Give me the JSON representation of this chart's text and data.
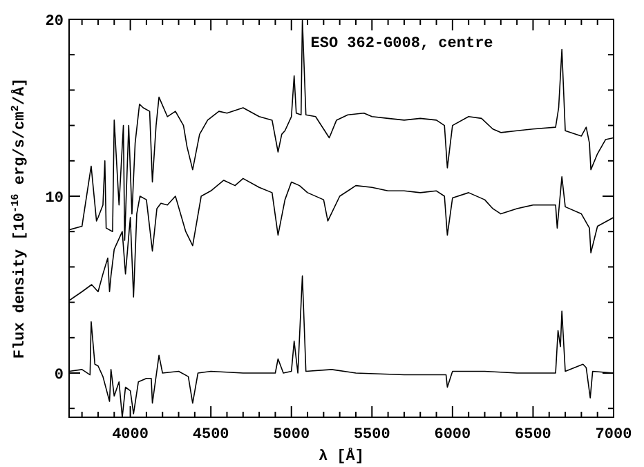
{
  "chart_data": {
    "type": "line",
    "title": "ESO 362-G008, centre",
    "xlabel": "λ [Å]",
    "ylabel": "Flux density [10$^{-16}$ erg/s/cm$^{2}$/Å]",
    "xlim": [
      3620,
      7000
    ],
    "ylim": [
      -2.5,
      20
    ],
    "xticks": [
      {
        "value": 3700,
        "label": null
      },
      {
        "value": 3800,
        "label": null
      },
      {
        "value": 3900,
        "label": null
      },
      4000,
      {
        "value": 4100,
        "label": null
      },
      {
        "value": 4200,
        "label": null
      },
      {
        "value": 4300,
        "label": null
      },
      {
        "value": 4400,
        "label": null
      },
      4500,
      {
        "value": 4600,
        "label": null
      },
      {
        "value": 4700,
        "label": null
      },
      {
        "value": 4800,
        "label": null
      },
      {
        "value": 4900,
        "label": null
      },
      5000,
      {
        "value": 5100,
        "label": null
      },
      {
        "value": 5200,
        "label": null
      },
      {
        "value": 5300,
        "label": null
      },
      {
        "value": 5400,
        "label": null
      },
      5500,
      {
        "value": 5600,
        "label": null
      },
      {
        "value": 5700,
        "label": null
      },
      {
        "value": 5800,
        "label": null
      },
      {
        "value": 5900,
        "label": null
      },
      6000,
      {
        "value": 6100,
        "label": null
      },
      {
        "value": 6200,
        "label": null
      },
      {
        "value": 6300,
        "label": null
      },
      {
        "value": 6400,
        "label": null
      },
      6500,
      {
        "value": 6600,
        "label": null
      },
      {
        "value": 6700,
        "label": null
      },
      {
        "value": 6800,
        "label": null
      },
      {
        "value": 6900,
        "label": null
      },
      7000
    ],
    "yticks": [
      {
        "value": -2,
        "label": null
      },
      0,
      {
        "value": 2,
        "label": null
      },
      {
        "value": 4,
        "label": null
      },
      {
        "value": 6,
        "label": null
      },
      {
        "value": 8,
        "label": null
      },
      10,
      {
        "value": 12,
        "label": null
      },
      {
        "value": 14,
        "label": null
      },
      {
        "value": 16,
        "label": null
      },
      {
        "value": 18,
        "label": null
      },
      20
    ],
    "grid": false,
    "line_style": "solid",
    "marker": "none",
    "series": [
      {
        "color": "#000000",
        "x": [
          3620,
          3700,
          3757,
          3790,
          3800,
          3830,
          3842,
          3850,
          3890,
          3900,
          3930,
          3957,
          3965,
          3990,
          4010,
          4030,
          4057,
          4080,
          4120,
          4137,
          4160,
          4178,
          4230,
          4280,
          4330,
          4352,
          4387,
          4430,
          4480,
          4550,
          4600,
          4700,
          4800,
          4880,
          4917,
          4940,
          4960,
          5000,
          5017,
          5030,
          5060,
          5068,
          5090,
          5150,
          5235,
          5280,
          5350,
          5450,
          5500,
          5600,
          5700,
          5800,
          5900,
          5950,
          5968,
          6000,
          6100,
          6180,
          6250,
          6300,
          6400,
          6500,
          6640,
          6659,
          6679,
          6700,
          6800,
          6830,
          6850,
          6859,
          6900,
          6950,
          7000
        ],
        "values": [
          8.1,
          8.3,
          11.7,
          8.6,
          8.8,
          9.5,
          12,
          8.2,
          8.0,
          14.3,
          9.5,
          14.0,
          7.5,
          14.0,
          9.0,
          13.0,
          15.2,
          15.0,
          14.8,
          10.8,
          14.0,
          15.6,
          14.5,
          14.8,
          14.0,
          12.8,
          11.5,
          13.5,
          14.3,
          14.8,
          14.7,
          15.0,
          14.5,
          14.3,
          12.5,
          13.5,
          13.7,
          14.5,
          16.8,
          14.7,
          14.6,
          20,
          14.6,
          14.5,
          13.3,
          14.3,
          14.6,
          14.7,
          14.5,
          14.4,
          14.3,
          14.4,
          14.3,
          14.0,
          11.6,
          14.0,
          14.5,
          14.4,
          13.8,
          13.6,
          13.7,
          13.8,
          13.9,
          15.0,
          18.3,
          13.7,
          13.4,
          13.9,
          13.0,
          11.5,
          12.4,
          13.2,
          13.3
        ]
      },
      {
        "color": "#000000",
        "x": [
          3620,
          3700,
          3760,
          3800,
          3830,
          3860,
          3871,
          3880,
          3900,
          3950,
          3970,
          4000,
          4020,
          4040,
          4060,
          4100,
          4137,
          4165,
          4190,
          4230,
          4280,
          4344,
          4387,
          4440,
          4500,
          4580,
          4650,
          4700,
          4800,
          4880,
          4917,
          4960,
          5000,
          5050,
          5100,
          5200,
          5226,
          5300,
          5400,
          5500,
          5600,
          5700,
          5800,
          5900,
          5950,
          5968,
          6000,
          6100,
          6200,
          6250,
          6300,
          6400,
          6500,
          6640,
          6650,
          6679,
          6700,
          6800,
          6850,
          6859,
          6900,
          7000
        ],
        "values": [
          4.1,
          4.6,
          5.0,
          4.6,
          5.6,
          6.5,
          4.6,
          5.5,
          7.0,
          8.0,
          5.6,
          8.8,
          4.3,
          9.0,
          10.0,
          9.8,
          6.9,
          9.3,
          9.6,
          9.5,
          10.0,
          8.0,
          7.2,
          10.0,
          10.3,
          10.9,
          10.6,
          11.0,
          10.5,
          10.2,
          7.8,
          9.8,
          10.8,
          10.6,
          10.2,
          9.8,
          8.6,
          10.0,
          10.6,
          10.5,
          10.3,
          10.3,
          10.2,
          10.3,
          10.0,
          7.8,
          9.9,
          10.2,
          9.8,
          9.3,
          9.0,
          9.3,
          9.5,
          9.5,
          8.2,
          11.1,
          9.4,
          9.0,
          8.2,
          6.8,
          8.3,
          8.8
        ]
      },
      {
        "color": "#000000",
        "x": [
          3620,
          3700,
          3750,
          3757,
          3780,
          3800,
          3830,
          3871,
          3880,
          3900,
          3930,
          3950,
          3970,
          4000,
          4020,
          4050,
          4100,
          4130,
          4137,
          4178,
          4200,
          4300,
          4360,
          4387,
          4420,
          4500,
          4700,
          4900,
          4917,
          4950,
          5000,
          5017,
          5040,
          5068,
          5090,
          5250,
          5400,
          5700,
          5960,
          5968,
          6000,
          6200,
          6400,
          6640,
          6655,
          6670,
          6679,
          6700,
          6810,
          6830,
          6855,
          6870,
          7000
        ],
        "values": [
          0.1,
          0.2,
          -0.1,
          2.9,
          0.5,
          0.4,
          -0.2,
          -1.6,
          0.2,
          -1.3,
          -0.5,
          -2.5,
          -0.8,
          -1.0,
          -2.3,
          -0.5,
          -0.3,
          -0.3,
          -1.7,
          1.0,
          0.0,
          0.1,
          -0.2,
          -1.7,
          0.0,
          0.1,
          0.0,
          0.0,
          0.8,
          0.0,
          0.1,
          1.8,
          0.0,
          5.5,
          0.1,
          0.2,
          0.0,
          -0.1,
          -0.1,
          -0.8,
          0.1,
          0.1,
          0.0,
          0.0,
          2.4,
          1.5,
          3.5,
          0.1,
          0.5,
          0.3,
          -1.4,
          0.1,
          0.0
        ]
      }
    ]
  }
}
